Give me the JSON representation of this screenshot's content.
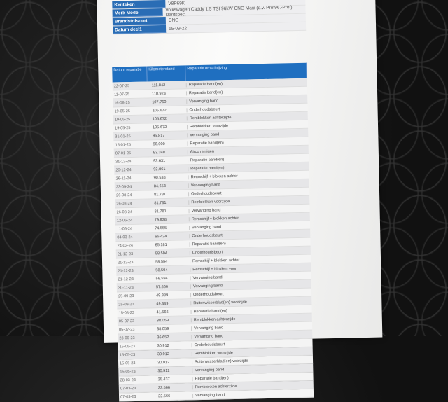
{
  "info": [
    {
      "label": "Kenteken",
      "value": "V8P69K"
    },
    {
      "label": "Merk Model",
      "value": "Volkswagen Caddy 1.5 TSI 96kW CNG Maxi (o.v. Prof96.-Prof) klantspec."
    },
    {
      "label": "Brandstofsoort",
      "value": "CNG"
    },
    {
      "label": "Datum deel1",
      "value": "15-09-22"
    }
  ],
  "table": {
    "headers": [
      "Datum reparatie",
      "Kilometerstand",
      "Reparatie omschrijving"
    ],
    "rows": [
      [
        "22-07-25",
        "111.842",
        "Reparatie band(en)"
      ],
      [
        "11-07-25",
        "110.923",
        "Reparatie band(en)"
      ],
      [
        "16-06-25",
        "107.760",
        "Vervanging band"
      ],
      [
        "19-05-25",
        "105.672",
        "Onderhoudsbeurt"
      ],
      [
        "19-05-25",
        "105.672",
        "Remblokken achterzijde"
      ],
      [
        "19-05-25",
        "105.672",
        "Remblokken voorzijde"
      ],
      [
        "31-01-25",
        "95.817",
        "Vervanging band"
      ],
      [
        "15-01-25",
        "96.000",
        "Reparatie band(en)"
      ],
      [
        "07-01-25",
        "93.348",
        "Airco reinigen"
      ],
      [
        "31-12-24",
        "93.631",
        "Reparatie band(en)"
      ],
      [
        "20-12-24",
        "92.061",
        "Reparatie band(en)"
      ],
      [
        "26-11-24",
        "90.538",
        "Remschijf + blokken achter"
      ],
      [
        "23-09-24",
        "84.653",
        "Vervanging band"
      ],
      [
        "26-08-24",
        "81.781",
        "Onderhoudsbeurt"
      ],
      [
        "26-08-24",
        "81.781",
        "Remblokken voorzijde"
      ],
      [
        "26-08-24",
        "81.781",
        "Vervanging band"
      ],
      [
        "12-06-24",
        "79.938",
        "Remschijf + blokken achter"
      ],
      [
        "11-06-24",
        "74.555",
        "Vervanging band"
      ],
      [
        "04-03-24",
        "65.424",
        "Onderhoudsbeurt"
      ],
      [
        "24-02-24",
        "65.181",
        "Reparatie band(en)"
      ],
      [
        "21-12-23",
        "58.594",
        "Onderhoudsbeurt"
      ],
      [
        "21-12-23",
        "58.594",
        "Remschijf + blokken achter"
      ],
      [
        "21-12-23",
        "58.594",
        "Remschijf + blokken voor"
      ],
      [
        "21-12-23",
        "58.594",
        "Vervanging band"
      ],
      [
        "30-11-23",
        "57.866",
        "Vervanging band"
      ],
      [
        "25-09-23",
        "49.389",
        "Onderhoudsbeurt"
      ],
      [
        "25-09-23",
        "49.389",
        "Ruitenwisserblad(en) voorzijde"
      ],
      [
        "15-08-23",
        "41.566",
        "Reparatie band(en)"
      ],
      [
        "05-07-23",
        "38.059",
        "Remblokken achterzijde"
      ],
      [
        "05-07-23",
        "38.059",
        "Vervanging band"
      ],
      [
        "23-06-23",
        "36.652",
        "Vervanging band"
      ],
      [
        "15-05-23",
        "30.912",
        "Onderhoudsbeurt"
      ],
      [
        "15-05-23",
        "30.912",
        "Remblokken voorzijde"
      ],
      [
        "15-05-23",
        "30.912",
        "Ruitenwisserblad(en) voorzijde"
      ],
      [
        "15-05-23",
        "30.912",
        "Vervanging band"
      ],
      [
        "28-03-23",
        "25.437",
        "Reparatie band(en)"
      ],
      [
        "07-03-23",
        "22.566",
        "Remblokken achterzijde"
      ],
      [
        "07-03-23",
        "22.566",
        "Vervanging band"
      ]
    ]
  },
  "colors": {
    "header_blue": "#1f6fc0",
    "label_blue": "#2a6db5"
  }
}
